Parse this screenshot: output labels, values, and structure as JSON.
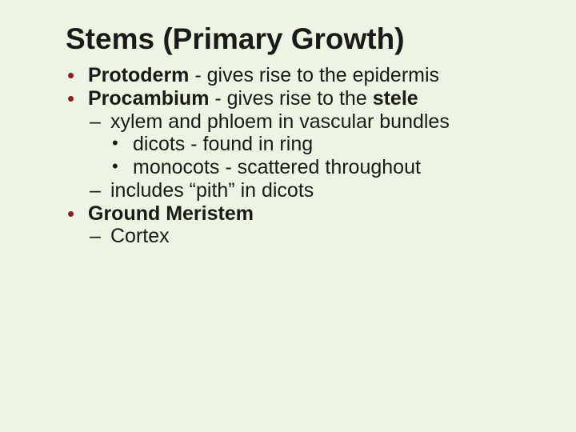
{
  "colors": {
    "background": "#edf4e3",
    "text": "#1a1a1a",
    "bullet_accent": "#8a1f1f"
  },
  "typography": {
    "family": "Verdana",
    "title_fontsize": 37,
    "body_fontsize": 25,
    "title_weight": "bold"
  },
  "title": "Stems (Primary Growth)",
  "items": {
    "b1_bold": "Protoderm",
    "b1_rest": " - gives rise to the epidermis",
    "b2_bold": "Procambium",
    "b2_rest": " - gives rise to the ",
    "b2_bold2": "stele",
    "b2_1": "xylem and phloem in vascular bundles",
    "b2_1_1": "dicots - found in ring",
    "b2_1_2": "monocots - scattered throughout",
    "b2_2": "includes “pith” in dicots",
    "b3_bold": "Ground Meristem",
    "b3_1": "Cortex"
  }
}
